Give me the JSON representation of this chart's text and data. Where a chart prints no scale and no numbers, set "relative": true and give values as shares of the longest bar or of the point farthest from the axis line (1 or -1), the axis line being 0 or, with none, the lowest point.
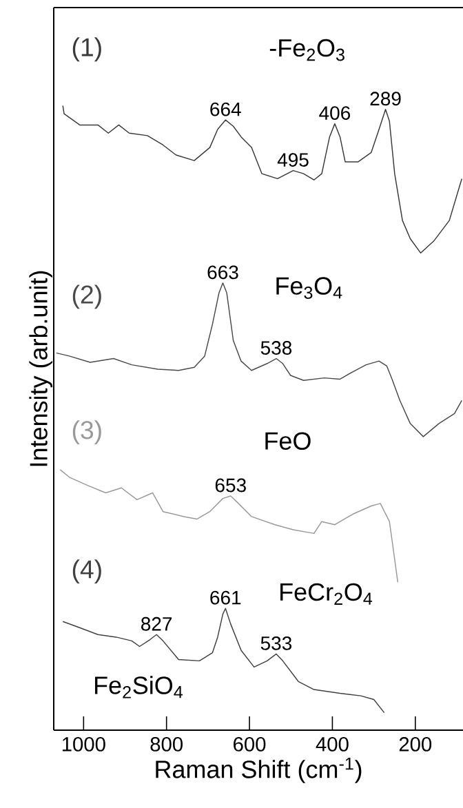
{
  "chart_data": {
    "type": "line",
    "relative": true,
    "xlabel": "Raman  Shift (cm$^{-1}$)",
    "ylabel": "Intensity  (arb.unit)",
    "xlim": [
      1072,
      85
    ],
    "xticks": [
      1000,
      800,
      600,
      400,
      200
    ],
    "series": [
      {
        "name": "(1)",
        "color": "#3a3a3a",
        "x": [
          1050.1,
          1047,
          1009.3,
          965.4,
          940.3,
          915.2,
          890.1,
          846.1,
          808.5,
          777.1,
          733.1,
          695.5,
          676.7,
          657.8,
          639.0,
          620.2,
          595.0,
          570.0,
          532.3,
          494.6,
          469.5,
          444.4,
          425.6,
          406.7,
          394.2,
          381.6,
          369.1,
          337.7,
          306.3,
          287.5,
          271.8,
          262.4,
          249.8,
          231.0,
          212.2,
          187.0,
          155.7,
          118.0,
          87.9
        ],
        "values": [
          1.0,
          0.987,
          0.969,
          0.969,
          0.956,
          0.969,
          0.956,
          0.952,
          0.937,
          0.921,
          0.912,
          0.933,
          0.962,
          0.977,
          0.967,
          0.95,
          0.933,
          0.891,
          0.883,
          0.896,
          0.891,
          0.881,
          0.891,
          0.95,
          0.971,
          0.95,
          0.91,
          0.91,
          0.925,
          0.962,
          0.994,
          0.975,
          0.891,
          0.816,
          0.787,
          0.764,
          0.783,
          0.816,
          0.883
        ]
      },
      {
        "name": "(2)",
        "color": "#4a4a4a",
        "x": [
          1065.8,
          1034.4,
          984.2,
          927.7,
          883.8,
          821.0,
          770.8,
          733.1,
          708.0,
          689.2,
          673.5,
          664.1,
          654.7,
          639.0,
          620.2,
          595.0,
          557.4,
          535.4,
          519.7,
          500.9,
          469.5,
          419.3,
          381.6,
          350.2,
          318.9,
          287.5,
          268.7,
          256.1,
          237.3,
          212.2,
          180.8,
          143.1,
          105.5,
          87.9
        ],
        "values": [
          0.604,
          0.599,
          0.589,
          0.595,
          0.585,
          0.578,
          0.576,
          0.581,
          0.599,
          0.65,
          0.7,
          0.716,
          0.7,
          0.624,
          0.591,
          0.576,
          0.587,
          0.595,
          0.587,
          0.568,
          0.56,
          0.564,
          0.562,
          0.574,
          0.585,
          0.591,
          0.583,
          0.562,
          0.528,
          0.491,
          0.47,
          0.491,
          0.507,
          0.528
        ]
      },
      {
        "name": "(3)",
        "color": "#999999",
        "x": [
          1056.4,
          1034.4,
          990.5,
          946.6,
          908.9,
          871.2,
          833.6,
          808.5,
          758.3,
          726.9,
          695.5,
          664.1,
          645.3,
          626.5,
          595.0,
          538.6,
          494.6,
          444.4,
          425.6,
          394.2,
          350.2,
          306.3,
          284.3,
          262.4,
          256.1,
          242.3
        ],
        "values": [
          0.417,
          0.405,
          0.392,
          0.38,
          0.388,
          0.369,
          0.38,
          0.35,
          0.342,
          0.338,
          0.35,
          0.371,
          0.375,
          0.363,
          0.342,
          0.329,
          0.321,
          0.315,
          0.334,
          0.329,
          0.346,
          0.359,
          0.363,
          0.334,
          0.304,
          0.237
        ]
      },
      {
        "name": "(4)",
        "color": "#404040",
        "x": [
          1050.1,
          1009.3,
          965.4,
          921.5,
          883.8,
          865.0,
          839.8,
          824.2,
          808.5,
          770.8,
          720.6,
          689.2,
          676.7,
          664.1,
          657.8,
          645.3,
          620.2,
          588.8,
          557.4,
          535.4,
          519.7,
          482.1,
          444.4,
          381.6,
          331.4,
          300.0,
          274.9
        ],
        "values": [
          0.174,
          0.164,
          0.153,
          0.149,
          0.143,
          0.134,
          0.145,
          0.153,
          0.143,
          0.113,
          0.111,
          0.124,
          0.149,
          0.186,
          0.195,
          0.17,
          0.128,
          0.101,
          0.111,
          0.122,
          0.111,
          0.078,
          0.065,
          0.059,
          0.055,
          0.049,
          0.028
        ]
      }
    ],
    "annotations": [
      "-Fe$_{2}$O$_{3}$",
      "Fe$_{3}$O$_{4}$",
      "FeO",
      "FeCr$_{2}$O$_{4}$",
      "Fe$_{2}$SiO$_{4}$",
      {
        "text": "664",
        "x": 657.8,
        "y": 0.977
      },
      {
        "text": "495",
        "x": 494.6,
        "y": 0.896
      },
      {
        "text": "406",
        "x": 394.2,
        "y": 0.971
      },
      {
        "text": "289",
        "x": 271.8,
        "y": 0.994
      },
      {
        "text": "663",
        "x": 664.1,
        "y": 0.716
      },
      {
        "text": "538",
        "x": 535.4,
        "y": 0.595
      },
      {
        "text": "653",
        "x": 645.3,
        "y": 0.375
      },
      {
        "text": "827",
        "x": 824.2,
        "y": 0.153
      },
      {
        "text": "661",
        "x": 657.8,
        "y": 0.195
      },
      {
        "text": "533",
        "x": 535.4,
        "y": 0.122
      }
    ]
  }
}
